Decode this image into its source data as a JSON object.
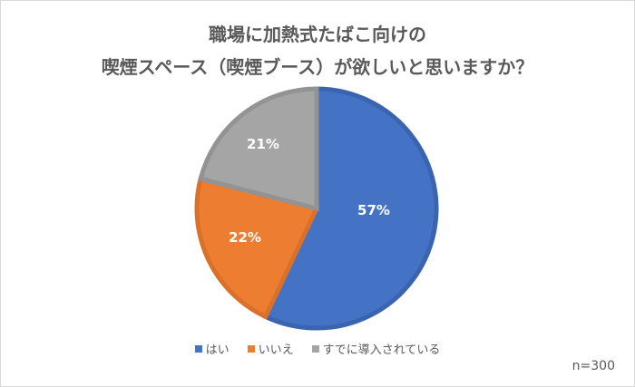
{
  "title": {
    "line1": "職場に加熱式たばこ向けの",
    "line2": "喫煙スペース（喫煙ブース）が欲しいと思いますか？"
  },
  "legend": [
    {
      "label": "はい",
      "color": "#4472c4"
    },
    {
      "label": "いいえ",
      "color": "#ed7d31"
    },
    {
      "label": "すでに導入されている",
      "color": "#a5a5a5"
    }
  ],
  "labels": {
    "yes": "57%",
    "no": "22%",
    "already": "21%"
  },
  "sample_size": "n=300",
  "chart_data": {
    "type": "pie",
    "title": "職場に加熱式たばこ向けの喫煙スペース（喫煙ブース）が欲しいと思いますか？",
    "categories": [
      "はい",
      "いいえ",
      "すでに導入されている"
    ],
    "values": [
      57,
      22,
      21
    ],
    "unit": "%",
    "colors": [
      "#4472c4",
      "#ed7d31",
      "#a5a5a5"
    ],
    "legend_position": "bottom",
    "annotation": "n=300"
  }
}
